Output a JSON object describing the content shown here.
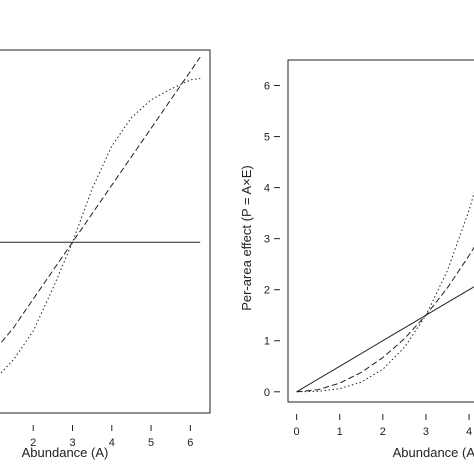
{
  "chart_data": [
    {
      "type": "line",
      "xlabel": "Abundance (A)",
      "ylabel": "",
      "xlim": [
        0.9,
        6.5
      ],
      "ylim": [
        -1.4,
        3.7
      ],
      "x_ticks": [
        2,
        3,
        4,
        5,
        6
      ],
      "x_tick_labels": [
        "2",
        "3",
        "4",
        "5",
        "6"
      ],
      "y_ticks": [],
      "y_tick_labels": [],
      "series": [
        {
          "style": "solid",
          "x": [
            0.9,
            6.25
          ],
          "y": [
            1.0,
            1.0
          ]
        },
        {
          "style": "dashed",
          "x": [
            0.9,
            1.5,
            2.0,
            2.5,
            3.0,
            3.5,
            4.0,
            4.5,
            5.0,
            5.5,
            6.0,
            6.25
          ],
          "y": [
            -0.6,
            -0.2,
            0.2,
            0.6,
            1.0,
            1.4,
            1.8,
            2.2,
            2.6,
            3.0,
            3.4,
            3.6
          ]
        },
        {
          "style": "dotted",
          "x": [
            0.9,
            1.5,
            2.0,
            2.5,
            3.0,
            3.5,
            4.0,
            4.5,
            5.0,
            5.5,
            6.0,
            6.25
          ],
          "y": [
            -1.0,
            -0.65,
            -0.25,
            0.35,
            1.0,
            1.75,
            2.35,
            2.75,
            3.0,
            3.15,
            3.28,
            3.3
          ]
        }
      ]
    },
    {
      "type": "line",
      "xlabel": "Abundance (A)",
      "ylabel": "Per-area effect (P = A×E)",
      "xlim": [
        -0.2,
        4.3
      ],
      "ylim": [
        -0.2,
        6.5
      ],
      "x_ticks": [
        0,
        1,
        2,
        3,
        4
      ],
      "x_tick_labels": [
        "0",
        "1",
        "2",
        "3",
        "4"
      ],
      "y_ticks": [
        0,
        1,
        2,
        3,
        4,
        5,
        6
      ],
      "y_tick_labels": [
        "0",
        "1",
        "2",
        "3",
        "4",
        "5",
        "6"
      ],
      "series": [
        {
          "style": "solid",
          "x": [
            0,
            1,
            2,
            3,
            4,
            4.3
          ],
          "y": [
            0,
            0.5,
            1.0,
            1.5,
            2.0,
            2.15
          ]
        },
        {
          "style": "dashed",
          "x": [
            0,
            0.5,
            1,
            1.5,
            2,
            2.5,
            3,
            3.5,
            4,
            4.3
          ],
          "y": [
            0,
            0.04,
            0.17,
            0.38,
            0.67,
            1.04,
            1.5,
            2.04,
            2.67,
            3.08
          ]
        },
        {
          "style": "dotted",
          "x": [
            0,
            0.5,
            1,
            1.5,
            2,
            2.5,
            3,
            3.5,
            4,
            4.3
          ],
          "y": [
            0,
            0.01,
            0.06,
            0.19,
            0.44,
            0.87,
            1.5,
            2.38,
            3.56,
            4.42
          ]
        }
      ]
    }
  ]
}
